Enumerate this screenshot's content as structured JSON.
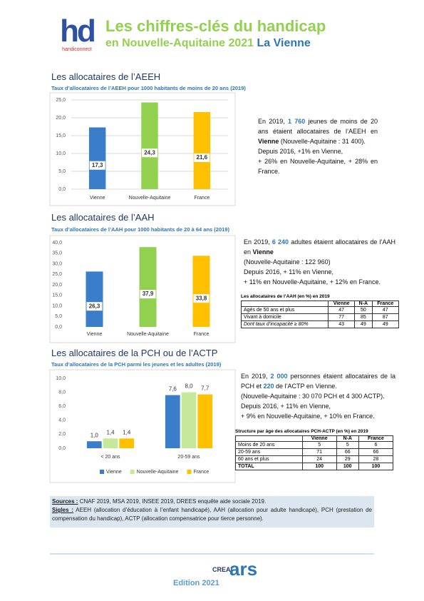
{
  "header": {
    "logo_mark": "hd",
    "logo_text": "handiconnect",
    "title": "Les chiffres-clés du handicap",
    "subtitle": "en Nouvelle-Aquitaine 2021",
    "subtitle_place": "La Vienne"
  },
  "sections": [
    "Les allocataires de l’AEEH",
    "Les allocataires de l’AAH",
    "Les allocataires de la PCH ou de l’ACTP"
  ],
  "chart_data": [
    {
      "type": "bar",
      "title": "Taux d’allocataires de l’AEEH pour 1000 habitants de moins de 20 ans (2019)",
      "categories": [
        "Vienne",
        "Nouvelle-Aquitaine",
        "France"
      ],
      "values": [
        17.3,
        24.3,
        21.6
      ],
      "value_labels": [
        "17,3",
        "24,3",
        "21,6"
      ],
      "colors": [
        "#3a7dc9",
        "#92d050",
        "#ffc000"
      ],
      "ylim": [
        0,
        25
      ],
      "yticks": [
        {
          "value": 0,
          "label": "0,0"
        },
        {
          "value": 5,
          "label": "5,0"
        },
        {
          "value": 10,
          "label": "10,0"
        },
        {
          "value": 15,
          "label": "15,0"
        },
        {
          "value": 20,
          "label": "20,0"
        },
        {
          "value": 25,
          "label": "25,0"
        }
      ],
      "grid": true,
      "label_position": "inside"
    },
    {
      "type": "bar",
      "title": "Taux d’allocataires de l’AAH pour 1000 habitants de 20 à 64 ans (2019)",
      "categories": [
        "Vienne",
        "Nouvelle-Aquitaine",
        "France"
      ],
      "values": [
        26.3,
        37.9,
        33.8
      ],
      "value_labels": [
        "26,3",
        "37,9",
        "33,8"
      ],
      "colors": [
        "#3a7dc9",
        "#92d050",
        "#ffc000"
      ],
      "ylim": [
        0,
        40
      ],
      "yticks": [
        {
          "value": 0,
          "label": "0,0"
        },
        {
          "value": 5,
          "label": "5,0"
        },
        {
          "value": 10,
          "label": "10,0"
        },
        {
          "value": 15,
          "label": "15,0"
        },
        {
          "value": 20,
          "label": "20,0"
        },
        {
          "value": 25,
          "label": "25,0"
        },
        {
          "value": 30,
          "label": "30,0"
        },
        {
          "value": 35,
          "label": "35,0"
        },
        {
          "value": 40,
          "label": "40,0"
        }
      ],
      "grid": false,
      "label_position": "inside"
    },
    {
      "type": "bar",
      "title": "Taux d’allocataires de la PCH parmi les jeunes et les adultes (2019)",
      "categories": [
        "< 20 ans",
        "20-59 ans"
      ],
      "series": [
        {
          "name": "Vienne",
          "color": "#3a7dc9",
          "values": [
            1.0,
            7.6
          ],
          "value_labels": [
            "1,0",
            "7,6"
          ]
        },
        {
          "name": "Nouvelle-Aquitaine",
          "color": "#c5e89a",
          "values": [
            1.4,
            8.0
          ],
          "value_labels": [
            "1,4",
            "8,0"
          ]
        },
        {
          "name": "France",
          "color": "#ffc000",
          "values": [
            1.4,
            7.7
          ],
          "value_labels": [
            "1,4",
            "7,7"
          ]
        }
      ],
      "ylim": [
        0,
        10
      ],
      "yticks": [
        {
          "value": 0,
          "label": "0,0"
        },
        {
          "value": 2,
          "label": "2,0"
        },
        {
          "value": 4,
          "label": "4,0"
        },
        {
          "value": 6,
          "label": "6,0"
        },
        {
          "value": 8,
          "label": "8,0"
        },
        {
          "value": 10,
          "label": "10,0"
        }
      ],
      "grid": false,
      "label_position": "above",
      "legend": "bottom"
    }
  ],
  "texts": {
    "aeeh": [
      "En 2019, ",
      "1 760",
      " jeunes de moins de 20 ans étaient allocataires de l’AEEH en ",
      "Vienne",
      " (Nouvelle-Aquitaine : 31 400).",
      "Depuis 2016, +1% en Vienne,",
      "+ 26% en Nouvelle-Aquitaine, + 28% en France."
    ],
    "aah": [
      "En 2019, ",
      "6 240",
      " adultes étaient allocataires de l’AAH en ",
      "Vienne",
      "(Nouvelle-Aquitaine : 122 960)",
      "Depuis 2016, + 11% en Vienne,",
      "+ 11% en Nouvelle-Aquitaine, + 12% en France."
    ],
    "pch": [
      "En 2019, ",
      "2 000",
      " personnes étaient allocataires de la PCH et ",
      "220",
      " de l’ACTP en Vienne.",
      "(Nouvelle-Aquitaine : 30 070 PCH et 4 300 ACTP).",
      "Depuis 2016, + 11% en Vienne,",
      "+ 9% en Nouvelle-Aquitaine, + 10% en France."
    ]
  },
  "tables": {
    "aah": {
      "title": "Les allocataires de l’AAH (en %) en 2019",
      "columns": [
        "Vienne",
        "N-A",
        "France"
      ],
      "rows": [
        {
          "label": "Agés de 50 ans et plus",
          "values": [
            47,
            50,
            47
          ]
        },
        {
          "label": "Vivant à domicile",
          "values": [
            77,
            85,
            87
          ]
        },
        {
          "label": "Dont taux d’incapacité ≥ 80%",
          "values": [
            43,
            49,
            49
          ]
        }
      ]
    },
    "pch": {
      "title": "Structure par âge des allocataires PCH-ACTP (en %) en 2019",
      "columns": [
        "Vienne",
        "N-A",
        "France"
      ],
      "rows": [
        {
          "label": "Moins de 20 ans",
          "values": [
            5,
            5,
            6
          ]
        },
        {
          "label": "20-59 ans",
          "values": [
            71,
            66,
            66
          ]
        },
        {
          "label": "60 ans et plus",
          "values": [
            24,
            29,
            28
          ]
        },
        {
          "label": "TOTAL",
          "values": [
            100,
            100,
            100
          ]
        }
      ]
    }
  },
  "sources": {
    "sources_label": "Sources :",
    "sources_text": "CNAF 2019, MSA 2019, INSEE 2019, DREES enquête aide sociale 2019.",
    "sigles_label": "Sigles :",
    "sigles_text": "AEEH (allocation d’éducation à l’enfant handicapé), AAH (allocation pour adulte handicapé), PCH (prestation de compensation du handicap), ACTP (allocation compensatrice pour tierce personne)."
  },
  "footer": {
    "edition": "Edition 2021",
    "logo_creai": "CREAI",
    "logo_ars": "ars"
  }
}
